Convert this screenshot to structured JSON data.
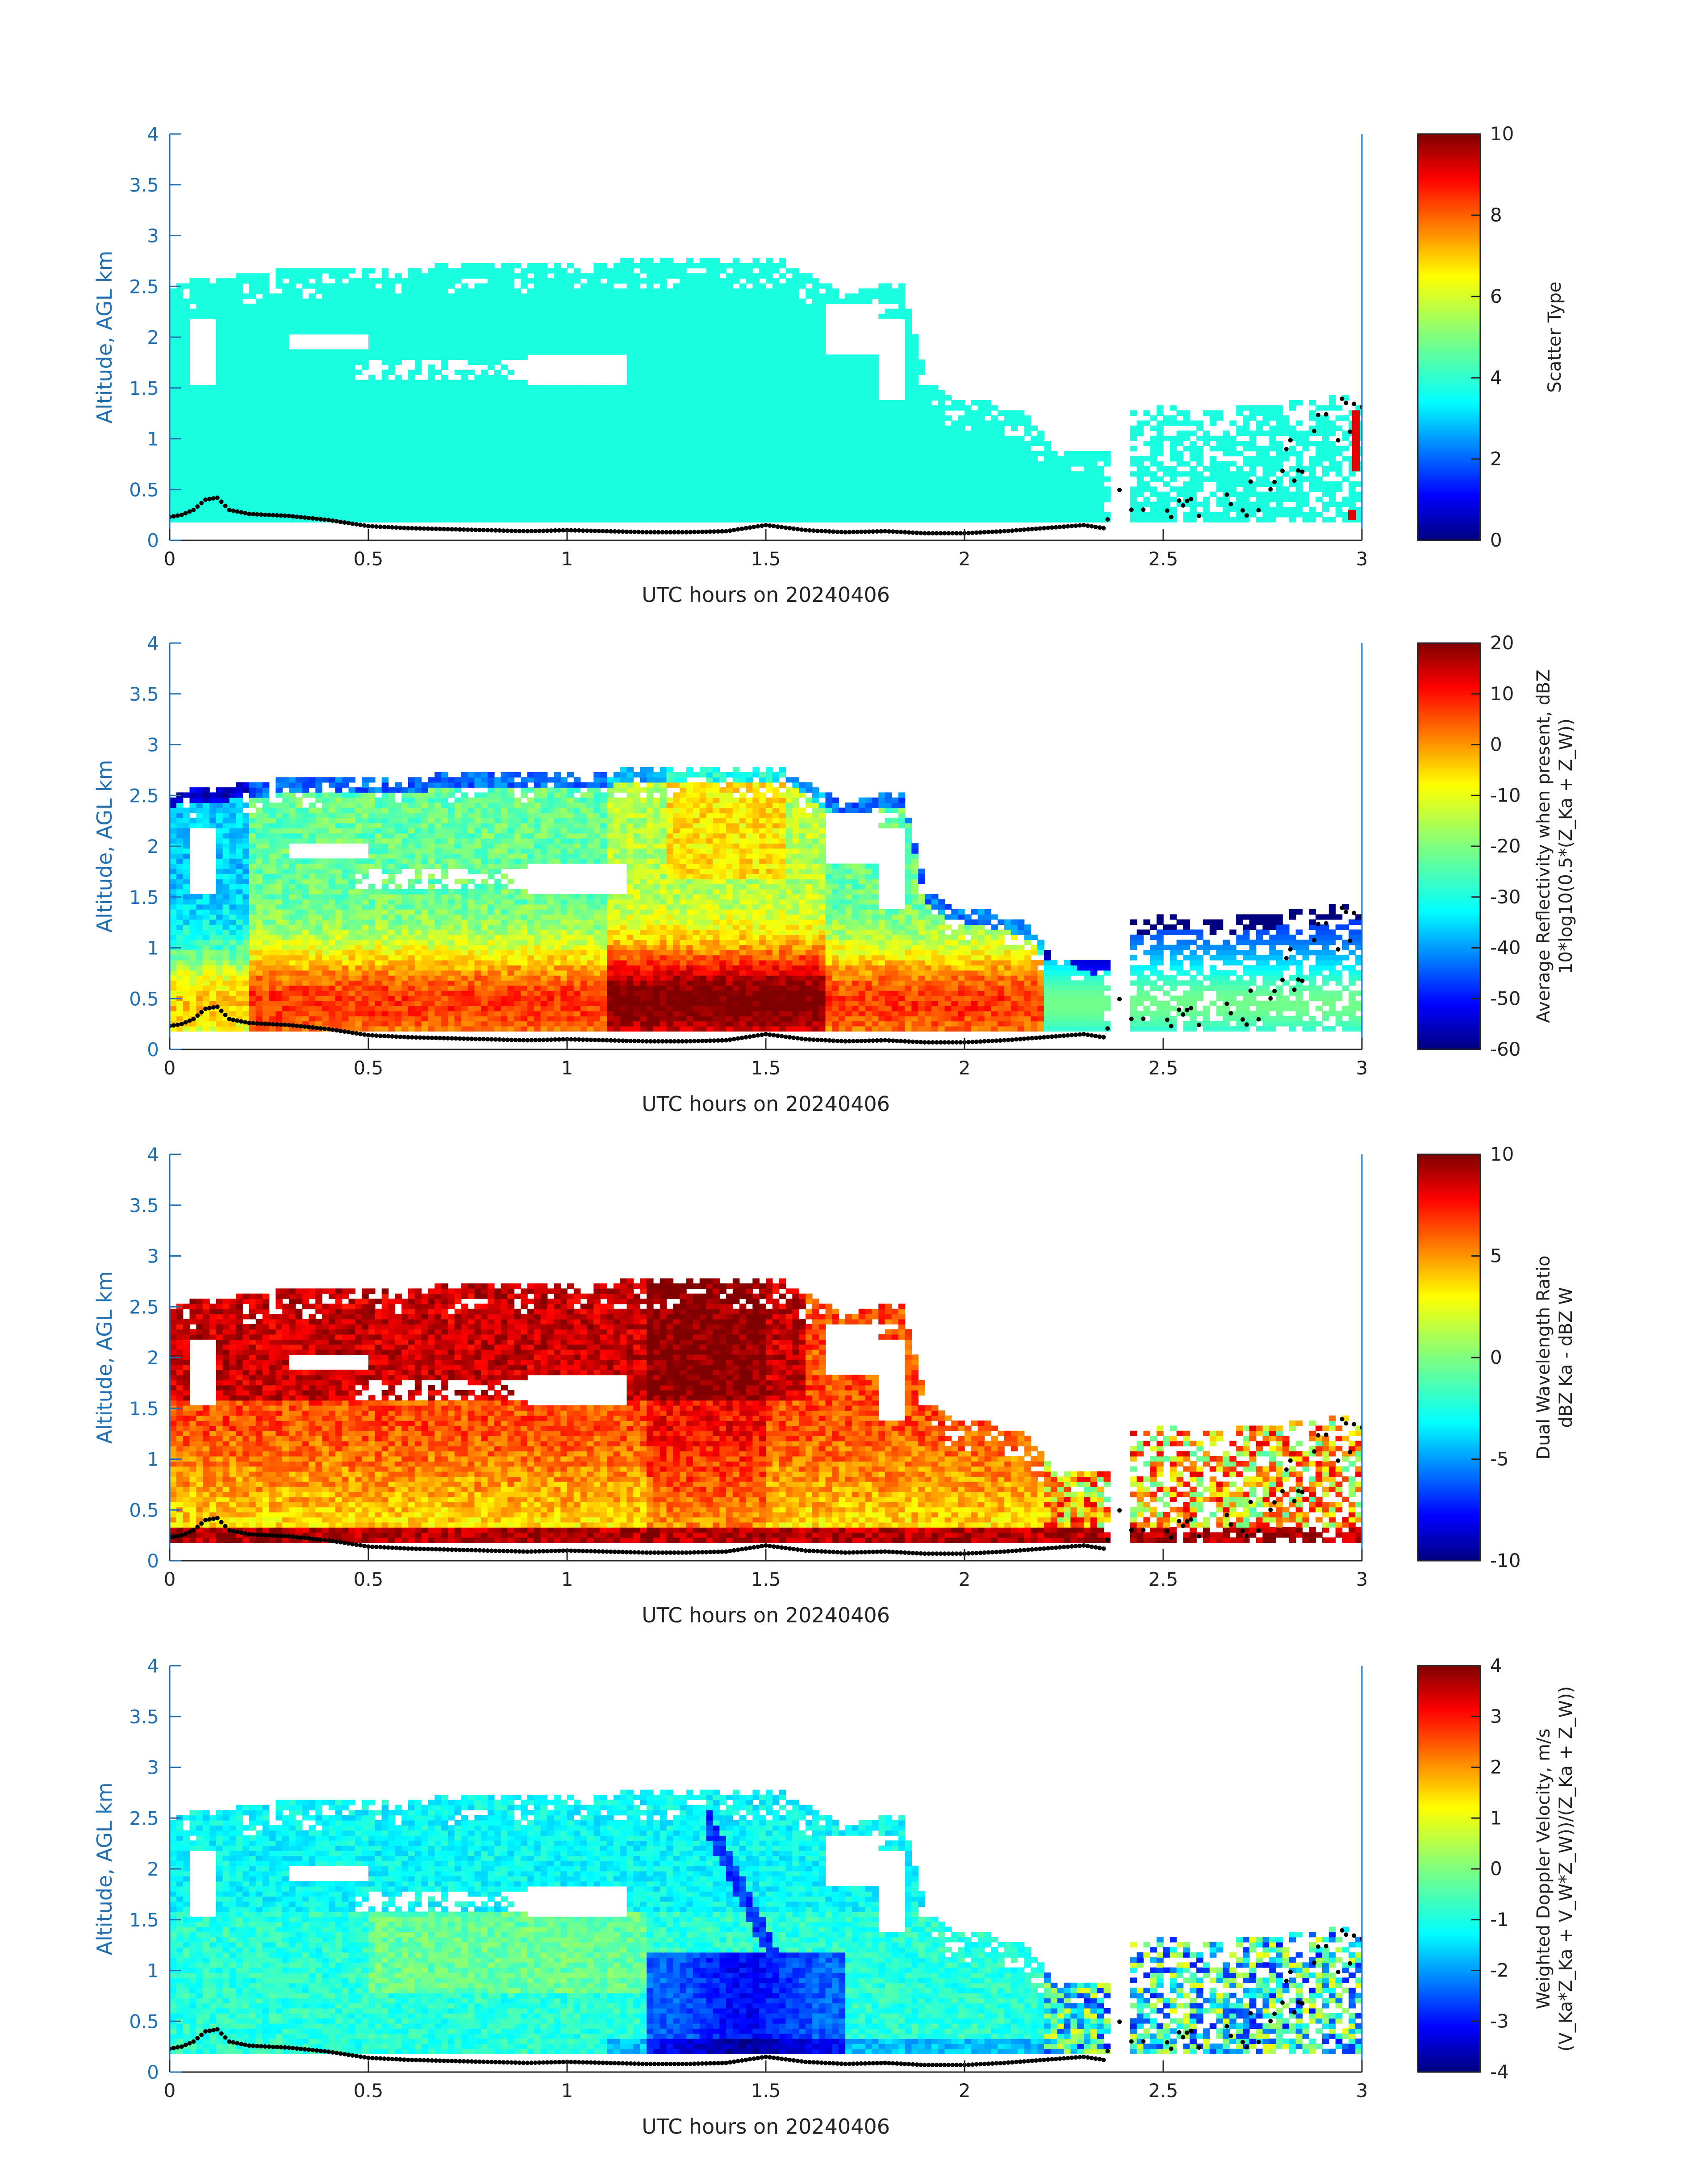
{
  "figure": {
    "cloud_color": "#19ffdf",
    "axis_color": "#1f6fb2",
    "mark_color": "#000000"
  },
  "chart_data": [
    {
      "type": "heatmap",
      "xlabel": "UTC hours on 20240406",
      "ylabel": "Altitude, AGL km",
      "xlim": [
        0,
        3
      ],
      "ylim": [
        0,
        4
      ],
      "x_ticks": [
        "0",
        "0.5",
        "1",
        "1.5",
        "2",
        "2.5",
        "3"
      ],
      "y_ticks": [
        "0",
        "0.5",
        "1",
        "1.5",
        "2",
        "2.5",
        "3",
        "3.5",
        "4"
      ],
      "colorbar": {
        "label_lines": [
          "Scatter Type"
        ],
        "range": [
          0,
          10
        ],
        "ticks": [
          "0",
          "2",
          "4",
          "6",
          "8",
          "10"
        ]
      },
      "field": "scatter_type"
    },
    {
      "type": "heatmap",
      "xlabel": "UTC hours on 20240406",
      "ylabel": "Altitude, AGL km",
      "xlim": [
        0,
        3
      ],
      "ylim": [
        0,
        4
      ],
      "x_ticks": [
        "0",
        "0.5",
        "1",
        "1.5",
        "2",
        "2.5",
        "3"
      ],
      "y_ticks": [
        "0",
        "0.5",
        "1",
        "1.5",
        "2",
        "2.5",
        "3",
        "3.5",
        "4"
      ],
      "colorbar": {
        "label_lines": [
          "Average Reflectivity when present, dBZ",
          "10*log10(0.5*(Z_Ka + Z_W))"
        ],
        "range": [
          -60,
          20
        ],
        "ticks": [
          "-60",
          "-50",
          "-40",
          "-30",
          "-20",
          "-10",
          "0",
          "10",
          "20"
        ]
      },
      "field": "reflectivity"
    },
    {
      "type": "heatmap",
      "xlabel": "UTC hours on 20240406",
      "ylabel": "Altitude, AGL km",
      "xlim": [
        0,
        3
      ],
      "ylim": [
        0,
        4
      ],
      "x_ticks": [
        "0",
        "0.5",
        "1",
        "1.5",
        "2",
        "2.5",
        "3"
      ],
      "y_ticks": [
        "0",
        "0.5",
        "1",
        "1.5",
        "2",
        "2.5",
        "3",
        "3.5",
        "4"
      ],
      "colorbar": {
        "label_lines": [
          "Dual Wavelength Ratio",
          "dBZ Ka - dBZ W"
        ],
        "range": [
          -10,
          10
        ],
        "ticks": [
          "-10",
          "-5",
          "0",
          "5",
          "10"
        ]
      },
      "field": "dwr"
    },
    {
      "type": "heatmap",
      "xlabel": "UTC hours on 20240406",
      "ylabel": "Altitude, AGL km",
      "xlim": [
        0,
        3
      ],
      "ylim": [
        0,
        4
      ],
      "x_ticks": [
        "0",
        "0.5",
        "1",
        "1.5",
        "2",
        "2.5",
        "3"
      ],
      "y_ticks": [
        "0",
        "0.5",
        "1",
        "1.5",
        "2",
        "2.5",
        "3",
        "3.5",
        "4"
      ],
      "colorbar": {
        "label_lines": [
          "Weighted Doppler Velocity, m/s",
          "(V_Ka*Z_Ka + V_W*Z_W))/(Z_Ka + Z_W))"
        ],
        "range": [
          -4,
          4
        ],
        "ticks": [
          "-4",
          "-3",
          "-2",
          "-1",
          "0",
          "1",
          "2",
          "3",
          "4"
        ]
      },
      "field": "velocity"
    }
  ],
  "cloud_top_km": [
    [
      0.0,
      2.52
    ],
    [
      0.1,
      2.55
    ],
    [
      0.2,
      2.6
    ],
    [
      0.3,
      2.65
    ],
    [
      0.4,
      2.65
    ],
    [
      0.5,
      2.65
    ],
    [
      0.6,
      2.65
    ],
    [
      0.7,
      2.7
    ],
    [
      0.8,
      2.7
    ],
    [
      0.9,
      2.7
    ],
    [
      1.0,
      2.72
    ],
    [
      1.1,
      2.72
    ],
    [
      1.2,
      2.75
    ],
    [
      1.3,
      2.75
    ],
    [
      1.4,
      2.75
    ],
    [
      1.5,
      2.75
    ],
    [
      1.55,
      2.75
    ],
    [
      1.6,
      2.6
    ],
    [
      1.65,
      2.5
    ],
    [
      1.7,
      2.4
    ],
    [
      1.75,
      2.45
    ],
    [
      1.8,
      2.5
    ],
    [
      1.85,
      2.5
    ],
    [
      1.9,
      1.6
    ],
    [
      1.95,
      1.4
    ],
    [
      2.0,
      1.35
    ],
    [
      2.05,
      1.35
    ],
    [
      2.1,
      1.3
    ],
    [
      2.15,
      1.25
    ],
    [
      2.2,
      1.0
    ],
    [
      2.25,
      1.0
    ],
    [
      2.3,
      0.9
    ],
    [
      2.35,
      0.85
    ],
    [
      2.4,
      1.25
    ],
    [
      2.45,
      1.25
    ],
    [
      2.5,
      1.3
    ],
    [
      2.55,
      1.3
    ],
    [
      2.6,
      1.3
    ],
    [
      2.65,
      1.25
    ],
    [
      2.7,
      1.3
    ],
    [
      2.75,
      1.3
    ],
    [
      2.8,
      1.35
    ],
    [
      2.85,
      1.35
    ],
    [
      2.9,
      1.4
    ],
    [
      2.95,
      1.4
    ],
    [
      3.0,
      1.42
    ]
  ],
  "surface_trace_km": [
    [
      0.0,
      0.23
    ],
    [
      0.03,
      0.25
    ],
    [
      0.06,
      0.3
    ],
    [
      0.09,
      0.4
    ],
    [
      0.12,
      0.42
    ],
    [
      0.15,
      0.3
    ],
    [
      0.2,
      0.26
    ],
    [
      0.3,
      0.24
    ],
    [
      0.4,
      0.2
    ],
    [
      0.5,
      0.14
    ],
    [
      0.6,
      0.12
    ],
    [
      0.7,
      0.11
    ],
    [
      0.8,
      0.1
    ],
    [
      0.9,
      0.09
    ],
    [
      1.0,
      0.1
    ],
    [
      1.1,
      0.09
    ],
    [
      1.2,
      0.08
    ],
    [
      1.3,
      0.08
    ],
    [
      1.4,
      0.09
    ],
    [
      1.5,
      0.15
    ],
    [
      1.6,
      0.1
    ],
    [
      1.7,
      0.08
    ],
    [
      1.8,
      0.09
    ],
    [
      1.9,
      0.07
    ],
    [
      2.0,
      0.07
    ],
    [
      2.1,
      0.09
    ],
    [
      2.2,
      0.12
    ],
    [
      2.3,
      0.15
    ],
    [
      2.35,
      0.12
    ],
    [
      2.4,
      0.55
    ],
    [
      2.5,
      0.35
    ],
    [
      2.6,
      0.45
    ],
    [
      2.7,
      0.35
    ],
    [
      2.8,
      0.7
    ],
    [
      2.9,
      1.05
    ],
    [
      2.95,
      1.2
    ]
  ]
}
